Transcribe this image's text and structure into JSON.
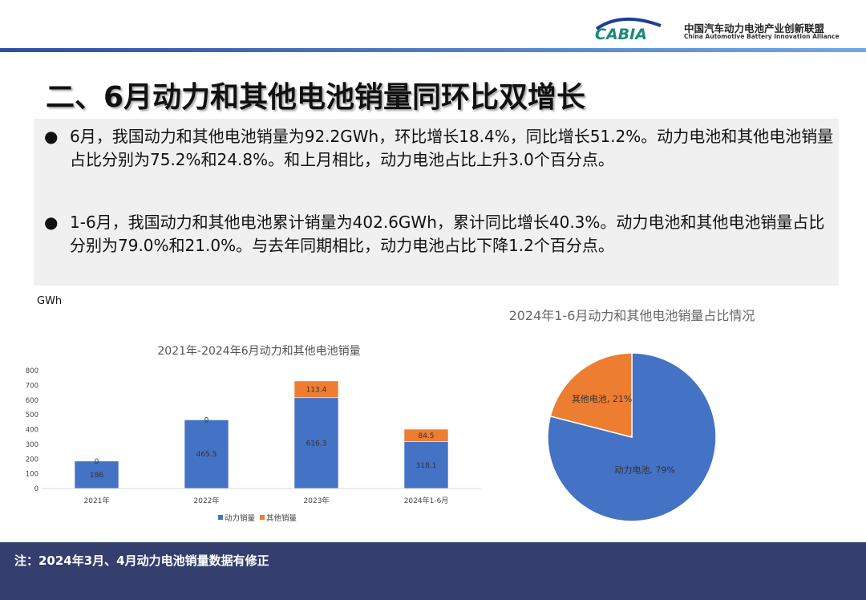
{
  "header": {
    "org_cn": "中国汽车动力电池产业创新联盟",
    "org_en": "China Automotive Battery Innovation Alliance",
    "logo_text": "CABIA"
  },
  "title": "二、6月动力和其他电池销量同环比双增长",
  "bullets": [
    "6月，我国动力和其他电池销量为92.2GWh，环比增长18.4%，同比增长51.2%。动力电池和其他电池销量占比分别为75.2%和24.8%。和上月相比，动力电池占比上升3.0个百分点。",
    "1-6月，我国动力和其他电池累计销量为402.6GWh，累计同比增长40.3%。动力电池和其他电池销量占比分别为79.0%和21.0%。与去年同期相比，动力电池占比下降1.2个百分点。"
  ],
  "bullet_symbol": "●",
  "footer_note": "注：2024年3月、4月动力电池销量数据有修正",
  "chart_data": [
    {
      "type": "bar",
      "stacked": true,
      "title": "2021年-2024年6月动力和其他电池销量",
      "unit_label": "GWh",
      "categories": [
        "2021年",
        "2022年",
        "2023年",
        "2024年1-6月"
      ],
      "series": [
        {
          "name": "动力销量",
          "values": [
            186,
            465.5,
            616.3,
            318.1
          ],
          "color": "#4472c4"
        },
        {
          "name": "其他销量",
          "values": [
            0,
            0,
            113.4,
            84.5
          ],
          "color": "#ed7d31"
        }
      ],
      "ylim": [
        0,
        800
      ],
      "yticks": [
        0,
        100,
        200,
        300,
        400,
        500,
        600,
        700,
        800
      ],
      "legend": "bottom",
      "grid": false
    },
    {
      "type": "pie",
      "title": "2024年1-6月动力和其他电池销量占比情况",
      "slices": [
        {
          "label": "动力电池",
          "value": 79,
          "display": "动力电池, 79%",
          "color": "#4472c4"
        },
        {
          "label": "其他电池",
          "value": 21,
          "display": "其他电池, 21%",
          "color": "#ed7d31"
        }
      ]
    }
  ]
}
